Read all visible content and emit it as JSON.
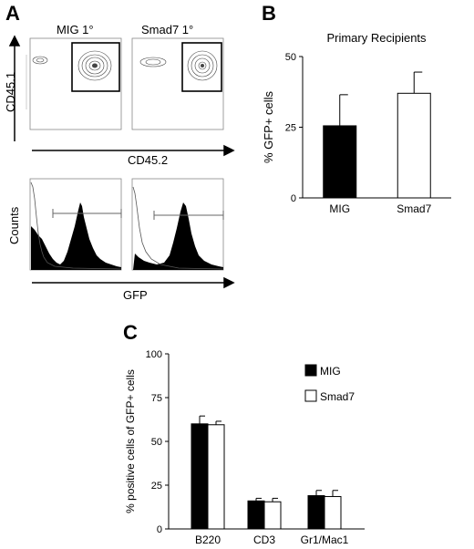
{
  "panels": {
    "a": "A",
    "b": "B",
    "c": "C"
  },
  "flow": {
    "plot1_title": "MIG 1°",
    "plot2_title": "Smad7 1°",
    "y_axis": "CD45.1",
    "x_axis": "CD45.2",
    "hist_y_axis": "Counts",
    "hist_x_axis": "GFP"
  },
  "chart_data": [
    {
      "type": "bar",
      "title": "Primary Recipients",
      "ylabel": "% GFP+ cells",
      "xlabel": "",
      "categories": [
        "MIG",
        "Smad7"
      ],
      "values": [
        25.5,
        37
      ],
      "errors": [
        11,
        7.5
      ],
      "fills": [
        "#000000",
        "#ffffff"
      ],
      "ylim": [
        0,
        50
      ],
      "yticks": [
        0,
        25,
        50
      ],
      "grid": false
    },
    {
      "type": "bar",
      "title": "",
      "ylabel": "% positive cells of GFP+ cells",
      "xlabel": "",
      "categories": [
        "B220",
        "CD3",
        "Gr1/Mac1"
      ],
      "series": [
        {
          "name": "MIG",
          "values": [
            60,
            16,
            19
          ],
          "errors": [
            4.5,
            1.5,
            3
          ],
          "fill": "#000000"
        },
        {
          "name": "Smad7",
          "values": [
            59.5,
            15.5,
            18.5
          ],
          "errors": [
            2,
            2,
            3.5
          ],
          "fill": "#ffffff"
        }
      ],
      "ylim": [
        0,
        100
      ],
      "yticks": [
        0,
        25,
        50,
        75,
        100
      ],
      "legend": "top-right",
      "grid": false
    }
  ]
}
